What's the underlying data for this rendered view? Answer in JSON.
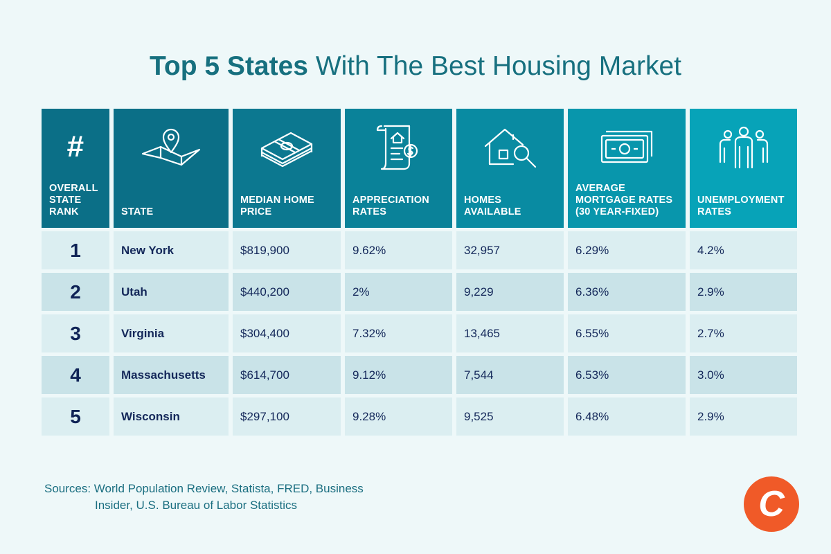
{
  "title": {
    "bold": "Top 5 States",
    "rest": " With The Best Housing Market"
  },
  "colors": {
    "header_dark": "#0b6f87",
    "header_light": "#07a3b8",
    "row_light": "#dbeef1",
    "row_dark": "#c9e3e8",
    "text": "#14285a",
    "logo": "#f05a28"
  },
  "chart_data": {
    "type": "table",
    "title": "Top 5 States With The Best Housing Market",
    "columns": [
      {
        "label": "#",
        "header": "OVERALL\nSTATE\nRANK",
        "icon": "hash-icon"
      },
      {
        "label": "",
        "header": "STATE",
        "icon": "map-pin-icon"
      },
      {
        "label": "",
        "header": "MEDIAN HOME\nPRICE",
        "icon": "money-stack-icon"
      },
      {
        "label": "",
        "header": "APPRECIATION\nRATES",
        "icon": "document-dollar-icon"
      },
      {
        "label": "",
        "header": "HOMES\nAVAILABLE",
        "icon": "house-search-icon"
      },
      {
        "label": "",
        "header": "AVERAGE\nMORTGAGE RATES\n(30 YEAR-FIXED)",
        "icon": "banknote-icon"
      },
      {
        "label": "",
        "header": "UNEMPLOYMENT\nRATES",
        "icon": "people-icon"
      }
    ],
    "rows": [
      [
        "1",
        "New York",
        "$819,900",
        "9.62%",
        "32,957",
        "6.29%",
        "4.2%"
      ],
      [
        "2",
        "Utah",
        "$440,200",
        "2%",
        "9,229",
        "6.36%",
        "2.9%"
      ],
      [
        "3",
        "Virginia",
        "$304,400",
        "7.32%",
        "13,465",
        "6.55%",
        "2.7%"
      ],
      [
        "4",
        "Massachusetts",
        "$614,700",
        "9.12%",
        "7,544",
        "6.53%",
        "3.0%"
      ],
      [
        "5",
        "Wisconsin",
        "$297,100",
        "9.28%",
        "9,525",
        "6.48%",
        "2.9%"
      ]
    ]
  },
  "sources": {
    "line1": "Sources: World Population Review, Statista, FRED, Business",
    "line2": "Insider, U.S. Bureau of Labor Statistics"
  },
  "logo": {
    "letter": "C"
  }
}
